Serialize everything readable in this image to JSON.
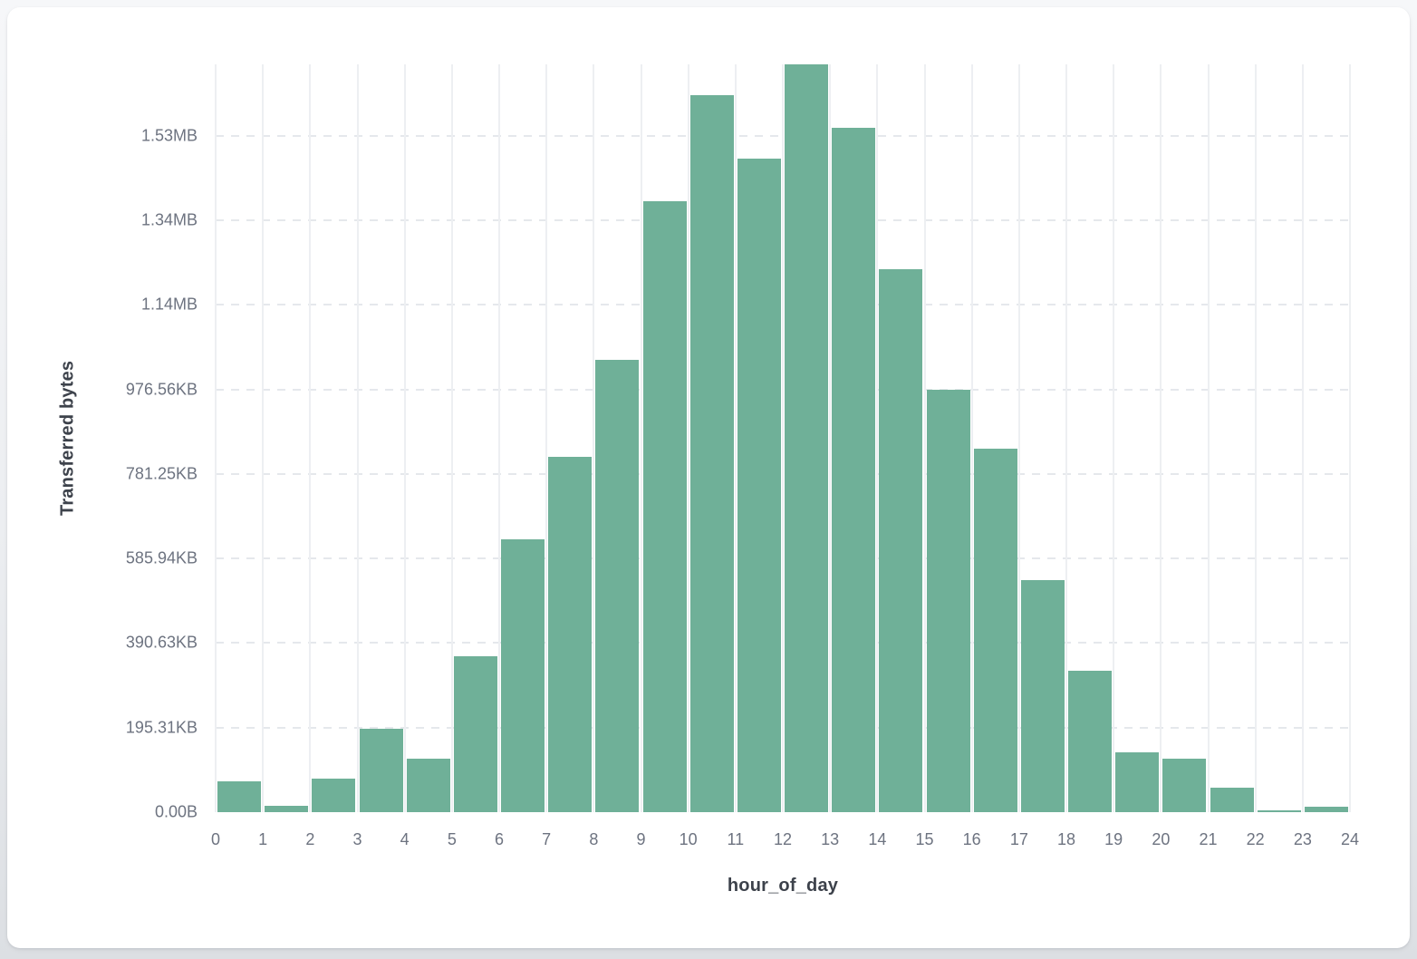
{
  "chart_data": {
    "type": "bar",
    "subtype": "histogram",
    "title": "",
    "xlabel": "hour_of_day",
    "ylabel": "Transferred bytes",
    "bar_color": "#6FB098",
    "grid": "on",
    "legend": "none",
    "x_domain": [
      0,
      24
    ],
    "x_bin_width": 1,
    "y_domain_bytes": [
      0,
      1768500
    ],
    "x_tick_labels": [
      "0",
      "1",
      "2",
      "3",
      "4",
      "5",
      "6",
      "7",
      "8",
      "9",
      "10",
      "11",
      "12",
      "13",
      "14",
      "15",
      "16",
      "17",
      "18",
      "19",
      "20",
      "21",
      "22",
      "23",
      "24"
    ],
    "y_ticks": [
      {
        "label": "0.00B",
        "bytes": 0
      },
      {
        "label": "195.31KB",
        "bytes": 200000
      },
      {
        "label": "390.63KB",
        "bytes": 400000
      },
      {
        "label": "585.94KB",
        "bytes": 600000
      },
      {
        "label": "781.25KB",
        "bytes": 800000
      },
      {
        "label": "976.56KB",
        "bytes": 1000000
      },
      {
        "label": "1.14MB",
        "bytes": 1200000
      },
      {
        "label": "1.34MB",
        "bytes": 1400000
      },
      {
        "label": "1.53MB",
        "bytes": 1600000
      }
    ],
    "bins": [
      {
        "hour": 0,
        "bytes": 73500
      },
      {
        "hour": 1,
        "bytes": 15000
      },
      {
        "hour": 2,
        "bytes": 78700
      },
      {
        "hour": 3,
        "bytes": 196600
      },
      {
        "hour": 4,
        "bytes": 125800
      },
      {
        "hour": 5,
        "bytes": 368700
      },
      {
        "hour": 6,
        "bytes": 645200
      },
      {
        "hour": 7,
        "bytes": 840300
      },
      {
        "hour": 8,
        "bytes": 1070300
      },
      {
        "hour": 9,
        "bytes": 1444200
      },
      {
        "hour": 10,
        "bytes": 1695600
      },
      {
        "hour": 11,
        "bytes": 1545500
      },
      {
        "hour": 12,
        "bytes": 1768500
      },
      {
        "hour": 13,
        "bytes": 1618400
      },
      {
        "hour": 14,
        "bytes": 1284000
      },
      {
        "hour": 15,
        "bytes": 998900
      },
      {
        "hour": 16,
        "bytes": 859600
      },
      {
        "hour": 17,
        "bytes": 548800
      },
      {
        "hour": 18,
        "bytes": 334400
      },
      {
        "hour": 19,
        "bytes": 141500
      },
      {
        "hour": 20,
        "bytes": 126500
      },
      {
        "hour": 21,
        "bytes": 57900
      },
      {
        "hour": 22,
        "bytes": 4300
      },
      {
        "hour": 23,
        "bytes": 12900
      }
    ]
  }
}
